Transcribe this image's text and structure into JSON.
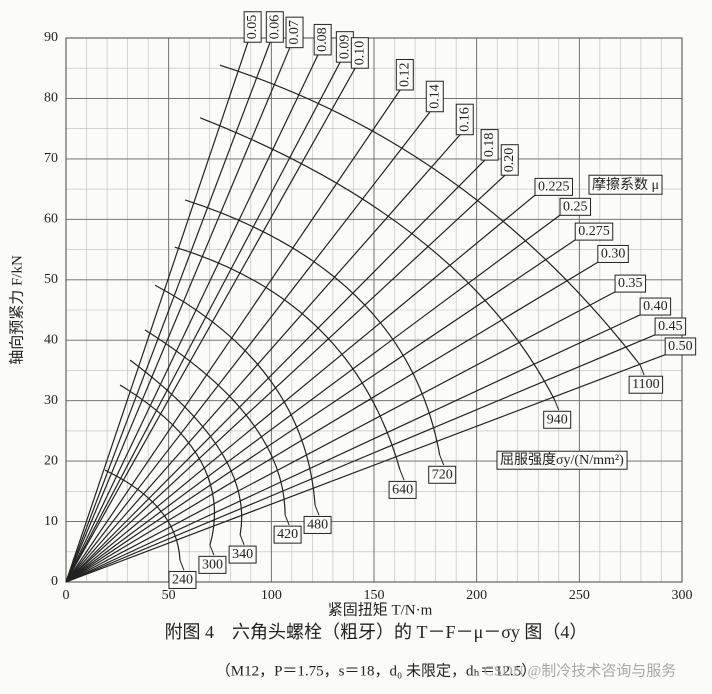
{
  "chart_data": {
    "type": "nomogram",
    "title": "附图 4　六角头螺栓（粗牙）的 T－F－μ－σy 图（4）",
    "subtitle": "（M12，P＝1.75，s＝18，d₀ 未限定，dₕ＝12.5）",
    "watermark": "CSDN @制冷技术咨询与服务",
    "xlabel": "紧固扭矩 T/N·m",
    "ylabel": "轴向预紧力 F/kN",
    "friction_label": "摩擦系数 μ",
    "yield_label": "屈服强度σy/(N/mm²)",
    "xlim": [
      0,
      300
    ],
    "ylim": [
      0,
      90
    ],
    "xticks": [
      0,
      50,
      100,
      150,
      200,
      250,
      300
    ],
    "yticks": [
      0,
      10,
      20,
      30,
      40,
      50,
      60,
      70,
      80,
      90
    ],
    "minor_grid": {
      "x": 10,
      "y": 5
    },
    "color": "#222222",
    "friction_lines": [
      {
        "name": "0.05",
        "end": [
          88.6,
          89.3
        ]
      },
      {
        "name": "0.06",
        "end": [
          99.4,
          89.3
        ]
      },
      {
        "name": "0.07",
        "end": [
          109,
          88.4
        ]
      },
      {
        "name": "0.08",
        "end": [
          122.7,
          87.2
        ]
      },
      {
        "name": "0.09",
        "end": [
          133.5,
          86
        ]
      },
      {
        "name": "0.10",
        "end": [
          140.8,
          85
        ]
      },
      {
        "name": "0.12",
        "end": [
          162.7,
          81.4
        ]
      },
      {
        "name": "0.14",
        "end": [
          177.3,
          77.8
        ]
      },
      {
        "name": "0.16",
        "end": [
          191.9,
          74
        ]
      },
      {
        "name": "0.18",
        "end": [
          204,
          69.8
        ]
      },
      {
        "name": "0.20",
        "end": [
          213.8,
          67.3
        ]
      },
      {
        "name": "0.225",
        "end": [
          228.4,
          64
        ]
      },
      {
        "name": "0.25",
        "end": [
          240.6,
          60.7
        ]
      },
      {
        "name": "0.275",
        "end": [
          248,
          56.6
        ]
      },
      {
        "name": "0.30",
        "end": [
          259,
          52.9
        ]
      },
      {
        "name": "0.35",
        "end": [
          267.4,
          48
        ]
      },
      {
        "name": "0.40",
        "end": [
          279.6,
          44.2
        ]
      },
      {
        "name": "0.45",
        "end": [
          286.9,
          40.9
        ]
      },
      {
        "name": "0.50",
        "end": [
          291.8,
          37.6
        ]
      }
    ],
    "yield_curves": [
      {
        "name": "240",
        "points": [
          [
            19,
            18.5
          ],
          [
            45.8,
            11.9
          ],
          [
            55.5,
            3.6
          ]
        ]
      },
      {
        "name": "300",
        "points": [
          [
            26.3,
            32.6
          ],
          [
            65.3,
            20.2
          ],
          [
            70.1,
            6.1
          ]
        ]
      },
      {
        "name": "340",
        "points": [
          [
            31.2,
            36.7
          ],
          [
            75,
            21.8
          ],
          [
            84.8,
            7.8
          ]
        ]
      },
      {
        "name": "420",
        "points": [
          [
            38.5,
            41.7
          ],
          [
            89.6,
            26.8
          ],
          [
            106.7,
            11.1
          ]
        ]
      },
      {
        "name": "480",
        "points": [
          [
            43.4,
            49.1
          ],
          [
            99.4,
            33.4
          ],
          [
            121.3,
            12.7
          ]
        ]
      },
      {
        "name": "640",
        "points": [
          [
            53,
            55.4
          ],
          [
            123.7,
            41.7
          ],
          [
            162.7,
            18.5
          ]
        ]
      },
      {
        "name": "720",
        "points": [
          [
            58,
            63.2
          ],
          [
            143,
            46.7
          ],
          [
            182,
            21
          ]
        ]
      },
      {
        "name": "940",
        "points": [
          [
            65.3,
            76.8
          ],
          [
            172.4,
            56.6
          ],
          [
            238,
            30.1
          ]
        ]
      },
      {
        "name": "1100",
        "points": [
          [
            75,
            85.5
          ],
          [
            187,
            66.5
          ],
          [
            279.6,
            35.9
          ]
        ]
      }
    ]
  }
}
